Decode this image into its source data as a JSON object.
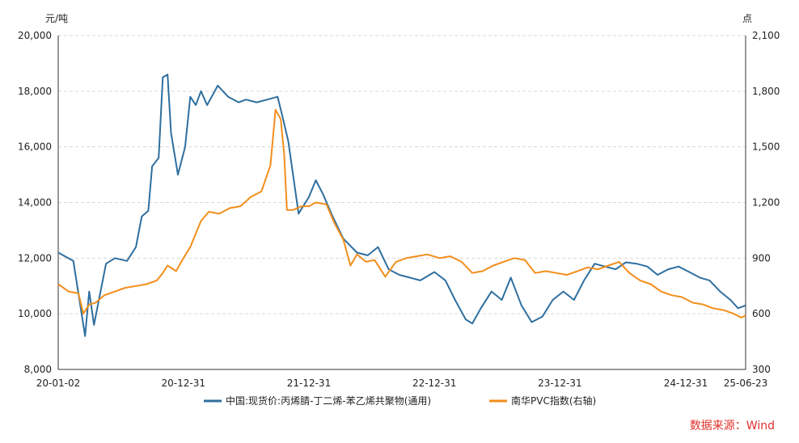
{
  "chart_data": {
    "type": "line",
    "left_unit": "元/吨",
    "right_unit": "点",
    "ylim_left": [
      8000,
      20000
    ],
    "ylim_right": [
      300,
      2100
    ],
    "yticks_left": [
      "20,000",
      "18,000",
      "16,000",
      "14,000",
      "12,000",
      "10,000",
      "8,000"
    ],
    "yticks_right": [
      "2,100",
      "1,800",
      "1,500",
      "1,200",
      "900",
      "600",
      "300"
    ],
    "x_ticks": [
      "20-01-02",
      "20-12-31",
      "21-12-31",
      "22-12-31",
      "23-12-31",
      "24-12-31",
      "25-06-23"
    ],
    "grid": "horizontal dashed",
    "legend_position": "bottom",
    "series": [
      {
        "name": "中国:现货价:丙烯腈-丁二烯-苯乙烯共聚物(通用)",
        "axis": "left",
        "color": "#2f6f9f",
        "x": [
          "2020-01-02",
          "2020-02-15",
          "2020-03-20",
          "2020-04-01",
          "2020-04-15",
          "2020-05-20",
          "2020-06-15",
          "2020-07-20",
          "2020-08-15",
          "2020-09-01",
          "2020-09-20",
          "2020-10-01",
          "2020-10-20",
          "2020-11-01",
          "2020-11-15",
          "2020-11-25",
          "2020-12-15",
          "2021-01-05",
          "2021-01-20",
          "2021-02-05",
          "2021-02-20",
          "2021-03-10",
          "2021-04-10",
          "2021-05-10",
          "2021-06-10",
          "2021-07-01",
          "2021-08-01",
          "2021-09-01",
          "2021-10-01",
          "2021-10-15",
          "2021-11-01",
          "2021-12-01",
          "2021-12-31",
          "2022-01-20",
          "2022-02-10",
          "2022-03-10",
          "2022-04-10",
          "2022-05-20",
          "2022-06-20",
          "2022-07-20",
          "2022-08-20",
          "2022-09-20",
          "2022-10-20",
          "2022-11-20",
          "2022-12-31",
          "2023-02-01",
          "2023-03-01",
          "2023-04-01",
          "2023-04-20",
          "2023-05-15",
          "2023-06-15",
          "2023-07-15",
          "2023-08-10",
          "2023-09-10",
          "2023-10-10",
          "2023-11-10",
          "2023-12-10",
          "2024-01-10",
          "2024-02-10",
          "2024-03-10",
          "2024-04-10",
          "2024-05-10",
          "2024-06-10",
          "2024-07-10",
          "2024-08-10",
          "2024-09-10",
          "2024-10-10",
          "2024-11-10",
          "2024-12-10",
          "2025-01-10",
          "2025-02-10",
          "2025-03-10",
          "2025-04-10",
          "2025-05-10",
          "2025-06-01",
          "2025-06-23"
        ],
        "values": [
          12200,
          11900,
          9200,
          10800,
          9600,
          11800,
          12000,
          11900,
          12400,
          13500,
          13700,
          15300,
          15600,
          18500,
          18600,
          16500,
          15000,
          16000,
          17800,
          17500,
          18000,
          17500,
          18200,
          17800,
          17600,
          17700,
          17600,
          17700,
          17800,
          17100,
          16200,
          13600,
          14200,
          14800,
          14300,
          13500,
          12700,
          12200,
          12100,
          12400,
          11600,
          11400,
          11300,
          11200,
          11500,
          11200,
          10500,
          9800,
          9650,
          10200,
          10800,
          10500,
          11300,
          10300,
          9700,
          9900,
          10500,
          10800,
          10500,
          11200,
          11800,
          11700,
          11600,
          11850,
          11800,
          11700,
          11400,
          11600,
          11700,
          11500,
          11300,
          11200,
          10800,
          10500,
          10200,
          10300
        ]
      },
      {
        "name": "南华PVC指数(右轴)",
        "axis": "right",
        "color": "#f28e1c",
        "x": [
          "2020-01-02",
          "2020-02-01",
          "2020-03-01",
          "2020-03-15",
          "2020-04-01",
          "2020-04-20",
          "2020-05-15",
          "2020-06-15",
          "2020-07-15",
          "2020-08-15",
          "2020-09-15",
          "2020-10-15",
          "2020-11-01",
          "2020-11-15",
          "2020-12-10",
          "2020-12-31",
          "2021-01-20",
          "2021-02-20",
          "2021-03-15",
          "2021-04-15",
          "2021-05-15",
          "2021-06-15",
          "2021-07-15",
          "2021-08-15",
          "2021-09-10",
          "2021-09-25",
          "2021-10-10",
          "2021-10-20",
          "2021-10-28",
          "2021-11-15",
          "2021-12-10",
          "2021-12-31",
          "2022-01-20",
          "2022-02-20",
          "2022-03-15",
          "2022-04-10",
          "2022-05-01",
          "2022-05-20",
          "2022-06-15",
          "2022-07-10",
          "2022-08-10",
          "2022-09-10",
          "2022-10-10",
          "2022-11-10",
          "2022-12-10",
          "2023-01-15",
          "2023-02-15",
          "2023-03-20",
          "2023-04-20",
          "2023-05-20",
          "2023-06-20",
          "2023-07-20",
          "2023-08-20",
          "2023-09-20",
          "2023-10-20",
          "2023-11-20",
          "2023-12-20",
          "2024-01-20",
          "2024-02-20",
          "2024-03-20",
          "2024-04-20",
          "2024-05-20",
          "2024-06-20",
          "2024-07-20",
          "2024-08-20",
          "2024-09-20",
          "2024-10-20",
          "2024-11-20",
          "2024-12-20",
          "2025-01-20",
          "2025-02-20",
          "2025-03-20",
          "2025-04-20",
          "2025-05-20",
          "2025-06-10",
          "2025-06-23"
        ],
        "values": [
          760,
          720,
          710,
          600,
          650,
          660,
          700,
          720,
          740,
          750,
          760,
          780,
          820,
          860,
          830,
          900,
          960,
          1100,
          1150,
          1140,
          1170,
          1180,
          1230,
          1260,
          1400,
          1700,
          1650,
          1460,
          1160,
          1160,
          1180,
          1180,
          1200,
          1190,
          1090,
          1000,
          860,
          920,
          880,
          890,
          800,
          880,
          900,
          910,
          920,
          900,
          910,
          880,
          820,
          830,
          860,
          880,
          900,
          890,
          820,
          830,
          820,
          810,
          830,
          850,
          840,
          860,
          880,
          820,
          780,
          760,
          720,
          700,
          690,
          660,
          650,
          630,
          620,
          600,
          580,
          590
        ]
      }
    ]
  }
}
